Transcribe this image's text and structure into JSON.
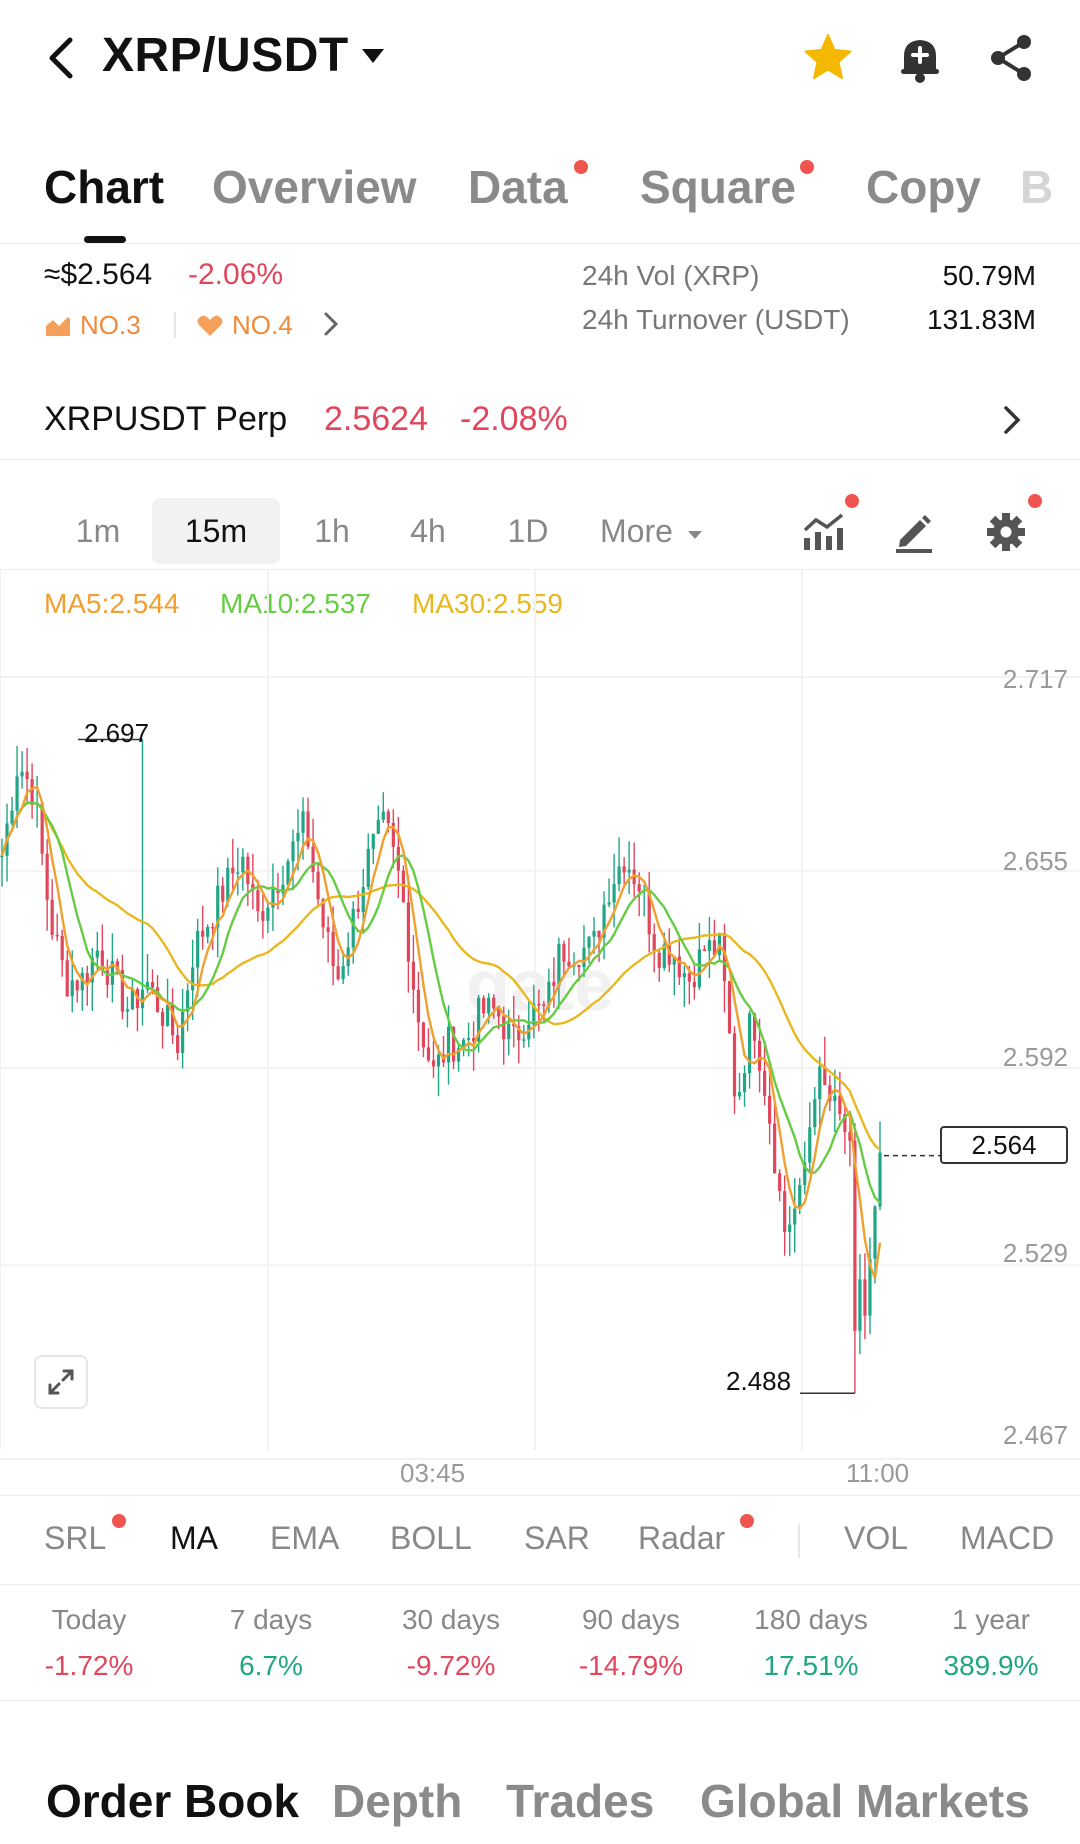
{
  "header": {
    "pair": "XRP/USDT",
    "icons": [
      "back-icon",
      "caret-down-icon",
      "star-icon",
      "bell-plus-icon",
      "share-icon"
    ],
    "star_color": "#f5b800"
  },
  "main_tabs": [
    {
      "label": "Chart",
      "active": true
    },
    {
      "label": "Overview"
    },
    {
      "label": "Data",
      "dot": true
    },
    {
      "label": "Square",
      "dot": true
    },
    {
      "label": "Copy"
    },
    {
      "label": "B"
    }
  ],
  "price_block": {
    "price": "≈$2.564",
    "change": "-2.06%",
    "rank1": "NO.3",
    "rank2": "NO.4",
    "vol_label": "24h Vol (XRP)",
    "vol_value": "50.79M",
    "turnover_label": "24h Turnover (USDT)",
    "turnover_value": "131.83M"
  },
  "perp": {
    "name": "XRPUSDT Perp",
    "price": "2.5624",
    "change": "-2.08%"
  },
  "timeframes": [
    {
      "label": "1m"
    },
    {
      "label": "15m",
      "active": true
    },
    {
      "label": "1h"
    },
    {
      "label": "4h"
    },
    {
      "label": "1D"
    },
    {
      "label": "More"
    }
  ],
  "chart_tools": [
    "indicator-icon",
    "draw-icon",
    "settings-icon"
  ],
  "chart": {
    "ma5": "MA5:2.544",
    "ma10": "MA10:2.537",
    "ma30": "MA30:2.559",
    "colors": {
      "ma5": "#f0a030",
      "ma10": "#66cc44",
      "ma30": "#e8b820",
      "up": "#21a685",
      "down": "#e0475c"
    },
    "y_ticks": [
      "2.717",
      "2.655",
      "2.592",
      "2.529",
      "2.467"
    ],
    "x_ticks": [
      "03:45",
      "11:00"
    ],
    "high_label": "2.697",
    "low_label": "2.488",
    "current_label": "2.564",
    "watermark": "gate"
  },
  "chart_data": {
    "type": "candlestick",
    "interval": "15m",
    "ylim": [
      2.467,
      2.717
    ],
    "y_ticks": [
      2.717,
      2.655,
      2.592,
      2.529,
      2.467
    ],
    "x_ticks": [
      "03:45",
      "11:00"
    ],
    "close_path": [
      2.66,
      2.69,
      2.68,
      2.64,
      2.62,
      2.62,
      2.63,
      2.62,
      2.61,
      2.62,
      2.61,
      2.6,
      2.63,
      2.64,
      2.65,
      2.66,
      2.64,
      2.65,
      2.66,
      2.67,
      2.64,
      2.62,
      2.64,
      2.66,
      2.67,
      2.65,
      2.61,
      2.59,
      2.6,
      2.6,
      2.61,
      2.61,
      2.6,
      2.61,
      2.61,
      2.63,
      2.63,
      2.63,
      2.65,
      2.66,
      2.65,
      2.63,
      2.63,
      2.62,
      2.63,
      2.63,
      2.58,
      2.61,
      2.58,
      2.54,
      2.55,
      2.59,
      2.58,
      2.57,
      2.51,
      2.56
    ],
    "ma5": 2.544,
    "ma10": 2.537,
    "ma30": 2.559,
    "high": 2.697,
    "low": 2.488,
    "last": 2.564
  },
  "indicators": [
    {
      "label": "SRL",
      "dot": true
    },
    {
      "label": "MA",
      "active": true
    },
    {
      "label": "EMA"
    },
    {
      "label": "BOLL"
    },
    {
      "label": "SAR"
    },
    {
      "label": "Radar",
      "dot": true
    },
    {
      "label": "VOL"
    },
    {
      "label": "MACD"
    }
  ],
  "performance": [
    {
      "label": "Today",
      "value": "-1.72%",
      "dir": "neg"
    },
    {
      "label": "7 days",
      "value": "6.7%",
      "dir": "pos"
    },
    {
      "label": "30 days",
      "value": "-9.72%",
      "dir": "neg"
    },
    {
      "label": "90 days",
      "value": "-14.79%",
      "dir": "neg"
    },
    {
      "label": "180 days",
      "value": "17.51%",
      "dir": "pos"
    },
    {
      "label": "1 year",
      "value": "389.9%",
      "dir": "pos"
    }
  ],
  "bottom_tabs": [
    {
      "label": "Order Book",
      "active": true
    },
    {
      "label": "Depth"
    },
    {
      "label": "Trades"
    },
    {
      "label": "Global Markets"
    }
  ]
}
